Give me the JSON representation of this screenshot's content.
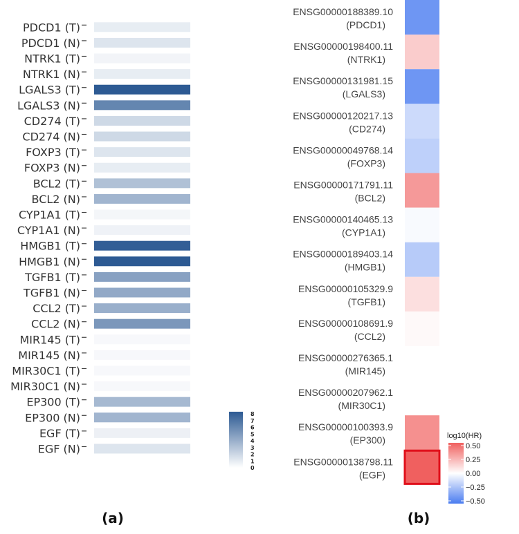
{
  "chart_data": [
    {
      "type": "heatmap",
      "panel_label": "(a)",
      "categories": [
        "PDCD1 (T)",
        "PDCD1 (N)",
        "NTRK1 (T)",
        "NTRK1 (N)",
        "LGALS3 (T)",
        "LGALS3 (N)",
        "CD274 (T)",
        "CD274 (N)",
        "FOXP3 (T)",
        "FOXP3 (N)",
        "BCL2 (T)",
        "BCL2 (N)",
        "CYP1A1 (T)",
        "CYP1A1 (N)",
        "HMGB1 (T)",
        "HMGB1 (N)",
        "TGFB1 (T)",
        "TGFB1 (N)",
        "CCL2 (T)",
        "CCL2 (N)",
        "MIR145 (T)",
        "MIR145 (N)",
        "MIR30C1 (T)",
        "MIR30C1 (N)",
        "EP300 (T)",
        "EP300 (N)",
        "EGF (T)",
        "EGF (N)"
      ],
      "values": [
        0.6,
        1.0,
        0.2,
        0.6,
        8.0,
        5.8,
        1.6,
        1.6,
        1.0,
        0.6,
        2.8,
        3.4,
        0.1,
        0.3,
        7.8,
        8.0,
        4.4,
        4.0,
        3.7,
        4.9,
        0.0,
        0.0,
        0.0,
        0.0,
        3.2,
        3.4,
        0.4,
        1.0
      ],
      "colorbar": {
        "min": 0,
        "max": 8,
        "ticks": [
          "8",
          "7",
          "6",
          "5",
          "4",
          "3",
          "2",
          "1",
          "0"
        ],
        "low_color": "#ffffff",
        "high_color": "#2d5a93"
      }
    },
    {
      "type": "heatmap",
      "panel_label": "(b)",
      "categories": [
        {
          "id": "ENSG00000188389.10",
          "gene": "(PDCD1)"
        },
        {
          "id": "ENSG00000198400.11",
          "gene": "(NTRK1)"
        },
        {
          "id": "ENSG00000131981.15",
          "gene": "(LGALS3)"
        },
        {
          "id": "ENSG00000120217.13",
          "gene": "(CD274)"
        },
        {
          "id": "ENSG00000049768.14",
          "gene": "(FOXP3)"
        },
        {
          "id": "ENSG00000171791.11",
          "gene": "(BCL2)"
        },
        {
          "id": "ENSG00000140465.13",
          "gene": "(CYP1A1)"
        },
        {
          "id": "ENSG00000189403.14",
          "gene": "(HMGB1)"
        },
        {
          "id": "ENSG00000105329.9",
          "gene": "(TGFB1)"
        },
        {
          "id": "ENSG00000108691.9",
          "gene": "(CCL2)"
        },
        {
          "id": "ENSG00000276365.1",
          "gene": "(MIR145)"
        },
        {
          "id": "ENSG00000207962.1",
          "gene": "(MIR30C1)"
        },
        {
          "id": "ENSG00000100393.9",
          "gene": "(EP300)"
        },
        {
          "id": "ENSG00000138798.11",
          "gene": "(EGF)"
        }
      ],
      "values": [
        -0.4,
        0.16,
        -0.4,
        -0.14,
        -0.18,
        0.32,
        -0.02,
        -0.2,
        0.1,
        0.02,
        null,
        null,
        0.35,
        0.5
      ],
      "highlighted": "(EGF)",
      "legend": {
        "title": "log10(HR)",
        "min": -0.5,
        "max": 0.5,
        "ticks": [
          "0.50",
          "0.25",
          "0.00",
          "−0.25",
          "−0.50"
        ],
        "low_color": "#4a7cf0",
        "mid_color": "#ffffff",
        "high_color": "#f0605f"
      }
    }
  ]
}
